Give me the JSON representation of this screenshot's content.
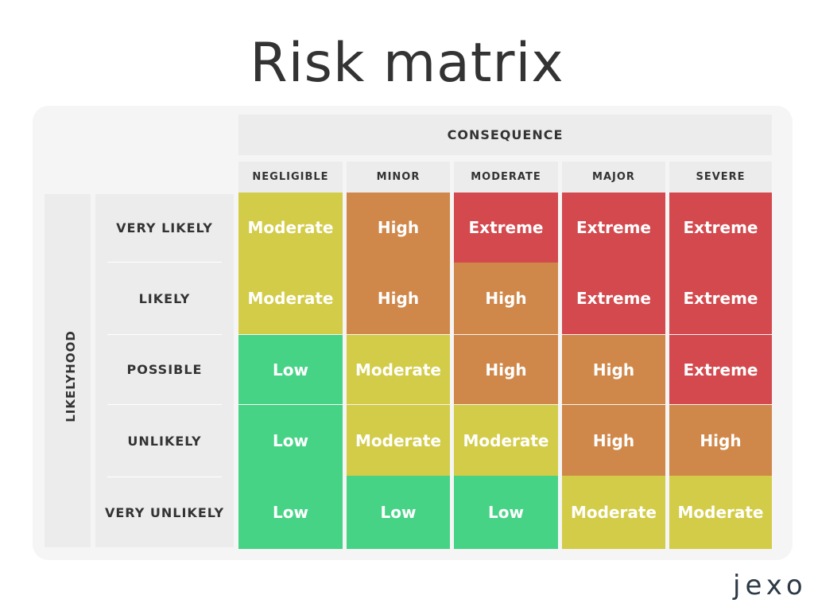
{
  "title": "Risk matrix",
  "consequence_label": "CONSEQUENCE",
  "likelihood_label": "LIKELYHOOD",
  "columns": [
    "NEGLIGIBLE",
    "MINOR",
    "MODERATE",
    "MAJOR",
    "SEVERE"
  ],
  "rows": [
    "VERY LIKELY",
    "LIKELY",
    "POSSIBLE",
    "UNLIKELY",
    "VERY UNLIKELY"
  ],
  "matrix": [
    [
      "Moderate",
      "High",
      "Extreme",
      "Extreme",
      "Extreme"
    ],
    [
      "Moderate",
      "High",
      "High",
      "Extreme",
      "Extreme"
    ],
    [
      "Low",
      "Moderate",
      "High",
      "High",
      "Extreme"
    ],
    [
      "Low",
      "Moderate",
      "Moderate",
      "High",
      "High"
    ],
    [
      "Low",
      "Low",
      "Low",
      "Moderate",
      "Moderate"
    ]
  ],
  "level_colors": {
    "Low": "#47d386",
    "Moderate": "#d3cc48",
    "High": "#d0884a",
    "Extreme": "#d3494e"
  },
  "logo": "jexo"
}
